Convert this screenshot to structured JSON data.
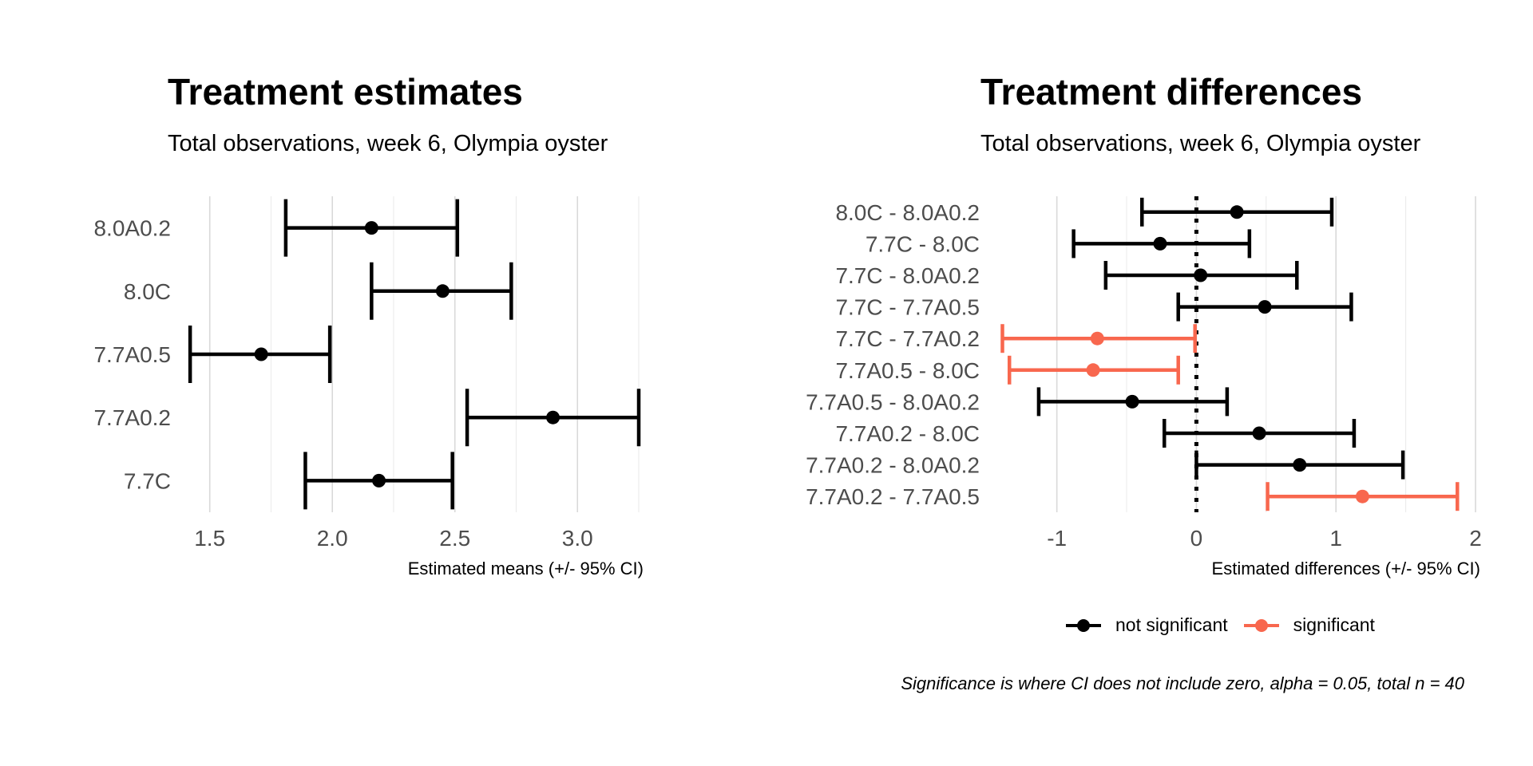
{
  "chart_data": [
    {
      "type": "errorbar",
      "title": "Treatment estimates",
      "subtitle": "Total observations, week 6, Olympia oyster",
      "xlabel": "Estimated means (+/- 95% CI)",
      "xlim": [
        1.4,
        3.25
      ],
      "xticks": [
        1.5,
        2.0,
        2.5,
        3.0
      ],
      "xtick_labels": [
        "1.5",
        "2.0",
        "2.5",
        "3.0"
      ],
      "categories": [
        "8.0A0.2",
        "8.0C",
        "7.7A0.5",
        "7.7A0.2",
        "7.7C"
      ],
      "estimate": [
        2.16,
        2.45,
        1.71,
        2.9,
        2.19
      ],
      "lower": [
        1.81,
        2.16,
        1.42,
        2.55,
        1.89
      ],
      "upper": [
        2.51,
        2.73,
        1.99,
        3.25,
        2.49
      ],
      "grid": "vertical",
      "color": "#000000"
    },
    {
      "type": "errorbar",
      "title": "Treatment differences",
      "subtitle": "Total observations, week 6, Olympia oyster",
      "xlabel": "Estimated differences (+/- 95% CI)",
      "xlim": [
        -1.45,
        2.0
      ],
      "xticks": [
        -1,
        0,
        1,
        2
      ],
      "xtick_labels": [
        "-1",
        "0",
        "1",
        "2"
      ],
      "reference_line": 0,
      "categories": [
        "8.0C - 8.0A0.2",
        "7.7C - 8.0C",
        "7.7C - 8.0A0.2",
        "7.7C - 7.7A0.5",
        "7.7C - 7.7A0.2",
        "7.7A0.5 - 8.0C",
        "7.7A0.5 - 8.0A0.2",
        "7.7A0.2 - 8.0C",
        "7.7A0.2 - 8.0A0.2",
        "7.7A0.2 - 7.7A0.5"
      ],
      "estimate": [
        0.29,
        -0.26,
        0.03,
        0.49,
        -0.71,
        -0.74,
        -0.46,
        0.45,
        0.74,
        1.19
      ],
      "lower": [
        -0.39,
        -0.88,
        -0.65,
        -0.13,
        -1.39,
        -1.34,
        -1.13,
        -0.23,
        0.0,
        0.51
      ],
      "upper": [
        0.97,
        0.38,
        0.72,
        1.11,
        -0.01,
        -0.13,
        0.22,
        1.13,
        1.48,
        1.87
      ],
      "significant": [
        false,
        false,
        false,
        false,
        true,
        true,
        false,
        false,
        false,
        true
      ],
      "grid": "vertical",
      "colors": {
        "not significant": "#000000",
        "significant": "#f8674e"
      },
      "legend": {
        "position": "bottom",
        "entries": [
          "not significant",
          "significant"
        ]
      },
      "caption": "Significance is where CI does not include zero, alpha = 0.05, total n = 40"
    }
  ]
}
